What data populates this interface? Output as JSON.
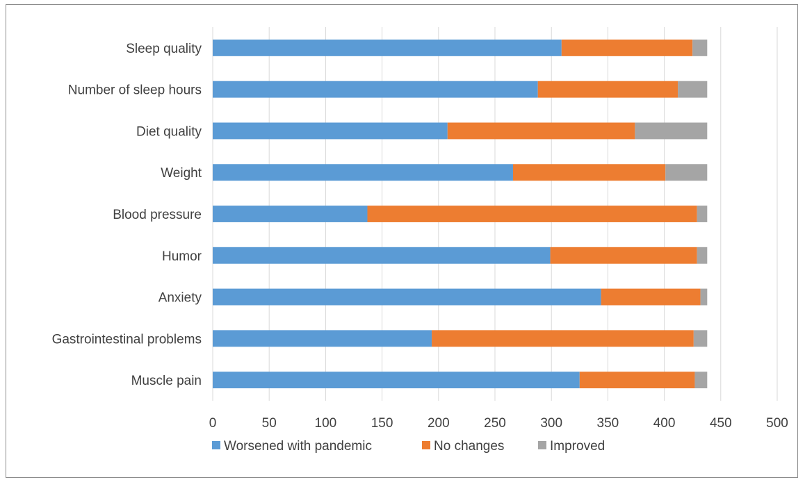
{
  "chart_data": {
    "type": "bar",
    "orientation": "horizontal",
    "stacked": true,
    "categories": [
      "Sleep quality",
      "Number of sleep hours",
      "Diet quality",
      "Weight",
      "Blood pressure",
      "Humor",
      "Anxiety",
      "Gastrointestinal problems",
      "Muscle pain"
    ],
    "series": [
      {
        "name": "Worsened with pandemic",
        "color": "#5b9bd5",
        "values": [
          309,
          288,
          208,
          266,
          137,
          299,
          344,
          194,
          325
        ]
      },
      {
        "name": "No changes",
        "color": "#ed7d31",
        "values": [
          116,
          124,
          166,
          135,
          292,
          130,
          88,
          232,
          102
        ]
      },
      {
        "name": "Improved",
        "color": "#a5a5a5",
        "values": [
          13,
          26,
          64,
          37,
          9,
          9,
          6,
          12,
          11
        ]
      }
    ],
    "xlim": [
      0,
      500
    ],
    "xticks": [
      "0",
      "50",
      "100",
      "150",
      "200",
      "250",
      "300",
      "350",
      "400",
      "450",
      "500"
    ],
    "grid": "vertical",
    "legend_position": "bottom",
    "title": "",
    "xlabel": "",
    "ylabel": ""
  }
}
